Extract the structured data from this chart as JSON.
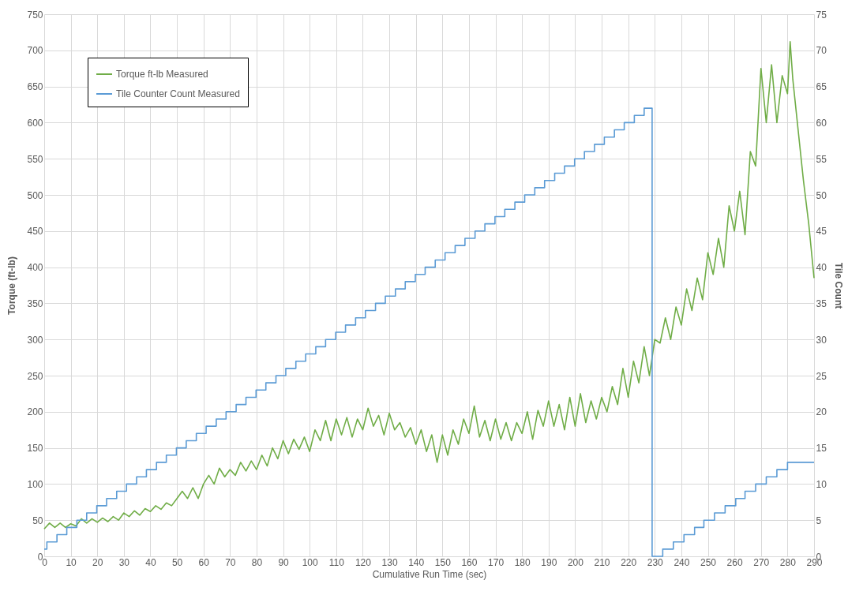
{
  "chart_data": {
    "type": "line",
    "xlabel": "Cumulative Run Time (sec)",
    "ylabel": "Torque (ft-lb)",
    "y2label": "Tile Count",
    "xlim": [
      0,
      290
    ],
    "xticks": [
      0,
      10,
      20,
      30,
      40,
      50,
      60,
      70,
      80,
      90,
      100,
      110,
      120,
      130,
      140,
      150,
      160,
      170,
      180,
      190,
      200,
      210,
      220,
      230,
      240,
      250,
      260,
      270,
      280,
      290
    ],
    "ylim": [
      0,
      750
    ],
    "yticks": [
      0,
      50,
      100,
      150,
      200,
      250,
      300,
      350,
      400,
      450,
      500,
      550,
      600,
      650,
      700,
      750
    ],
    "y2lim": [
      0,
      75
    ],
    "y2ticks": [
      0,
      5,
      10,
      15,
      20,
      25,
      30,
      35,
      40,
      45,
      50,
      55,
      60,
      65,
      70,
      75
    ],
    "grid": true,
    "legend": "top left",
    "line_style": "solid",
    "series": [
      {
        "name": "Torque ft-lb Measured",
        "type": "line",
        "color": "#70ad47",
        "x": [
          0,
          2,
          4,
          6,
          8,
          10,
          12,
          14,
          16,
          18,
          20,
          22,
          24,
          26,
          28,
          30,
          32,
          34,
          36,
          38,
          40,
          42,
          44,
          46,
          48,
          50,
          52,
          54,
          56,
          58,
          60,
          62,
          64,
          66,
          68,
          70,
          72,
          74,
          76,
          78,
          80,
          82,
          84,
          86,
          88,
          90,
          92,
          94,
          96,
          98,
          100,
          102,
          104,
          106,
          108,
          110,
          112,
          114,
          116,
          118,
          120,
          122,
          124,
          126,
          128,
          130,
          132,
          134,
          136,
          138,
          140,
          142,
          144,
          146,
          148,
          150,
          152,
          154,
          156,
          158,
          160,
          162,
          164,
          166,
          168,
          170,
          172,
          174,
          176,
          178,
          180,
          182,
          184,
          186,
          188,
          190,
          192,
          194,
          196,
          198,
          200,
          202,
          204,
          206,
          208,
          210,
          212,
          214,
          216,
          218,
          220,
          222,
          224,
          226,
          228,
          230,
          232,
          234,
          236,
          238,
          240,
          242,
          244,
          246,
          248,
          250,
          252,
          254,
          256,
          258,
          260,
          262,
          264,
          266,
          268,
          270,
          272,
          274,
          276,
          278,
          280,
          281,
          282,
          284,
          286,
          288,
          290
        ],
        "values": [
          38,
          46,
          40,
          46,
          40,
          45,
          42,
          52,
          46,
          52,
          47,
          53,
          48,
          55,
          50,
          60,
          55,
          63,
          57,
          66,
          62,
          70,
          65,
          74,
          70,
          80,
          90,
          80,
          95,
          80,
          100,
          112,
          100,
          122,
          110,
          120,
          112,
          130,
          118,
          132,
          120,
          140,
          125,
          150,
          135,
          160,
          142,
          162,
          148,
          165,
          145,
          175,
          160,
          188,
          160,
          190,
          168,
          192,
          165,
          190,
          175,
          205,
          180,
          195,
          168,
          198,
          175,
          185,
          165,
          178,
          155,
          175,
          145,
          168,
          130,
          168,
          140,
          175,
          155,
          190,
          170,
          208,
          165,
          188,
          160,
          190,
          162,
          185,
          160,
          185,
          170,
          200,
          162,
          202,
          180,
          215,
          180,
          210,
          175,
          220,
          180,
          225,
          185,
          215,
          190,
          220,
          200,
          235,
          210,
          260,
          220,
          270,
          240,
          290,
          250,
          300,
          295,
          330,
          300,
          345,
          320,
          370,
          340,
          385,
          355,
          420,
          390,
          440,
          400,
          485,
          450,
          505,
          445,
          560,
          540,
          675,
          600,
          680,
          600,
          665,
          640,
          712,
          660,
          590,
          520,
          460,
          385
        ]
      },
      {
        "name": "Tile Counter Count Measured",
        "type": "step",
        "axis": "y2",
        "color": "#5b9bd5",
        "x": [
          0,
          1,
          4.8,
          8.5,
          12.3,
          16,
          19.8,
          23.5,
          27.3,
          31,
          34.8,
          38.5,
          42.3,
          46,
          49.8,
          53.5,
          57.3,
          61,
          64.8,
          68.5,
          72.3,
          76,
          79.8,
          83.5,
          87.3,
          91,
          94.8,
          98.5,
          102.3,
          106,
          109.8,
          113.5,
          117.3,
          121,
          124.8,
          128.5,
          132.3,
          136,
          139.8,
          143.5,
          147.3,
          151,
          154.8,
          158.5,
          162.3,
          166,
          169.8,
          173.5,
          177.3,
          181,
          184.8,
          188.5,
          192.3,
          196,
          199.8,
          203.5,
          207.3,
          211,
          214.8,
          218.5,
          222.3,
          226,
          229,
          233,
          237,
          241,
          245,
          248.5,
          252.5,
          256.5,
          260.5,
          264,
          268,
          272,
          276,
          280,
          290
        ],
        "values": [
          1,
          2,
          3,
          4,
          5,
          6,
          7,
          8,
          9,
          10,
          11,
          12,
          13,
          14,
          15,
          16,
          17,
          18,
          19,
          20,
          21,
          22,
          23,
          24,
          25,
          26,
          27,
          28,
          29,
          30,
          31,
          32,
          33,
          34,
          35,
          36,
          37,
          38,
          39,
          40,
          41,
          42,
          43,
          44,
          45,
          46,
          47,
          48,
          49,
          50,
          51,
          52,
          53,
          54,
          55,
          56,
          57,
          58,
          59,
          60,
          61,
          62,
          0,
          1,
          2,
          3,
          4,
          5,
          6,
          7,
          8,
          9,
          10,
          11,
          12,
          13,
          13
        ]
      }
    ]
  }
}
